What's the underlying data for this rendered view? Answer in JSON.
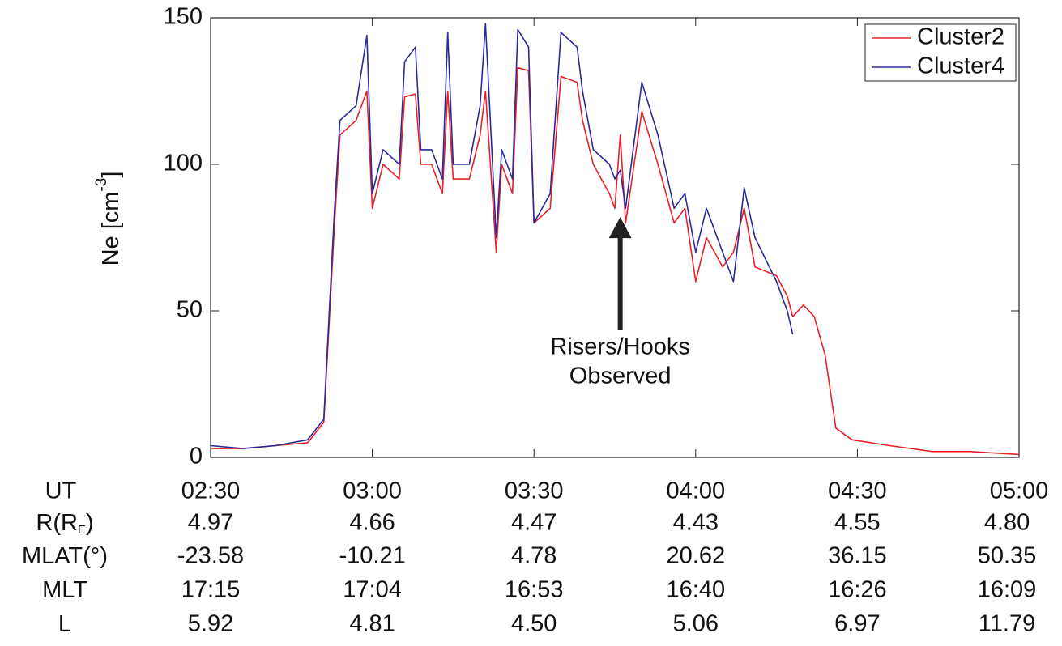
{
  "chart_data": {
    "type": "line",
    "ylabel": {
      "text": "Ne [cm",
      "superscript": "-3",
      "suffix": "]"
    },
    "x": [
      "02:30",
      "02:36",
      "02:42",
      "02:48",
      "02:51",
      "02:53",
      "02:54",
      "02:57",
      "02:59",
      "03:00",
      "03:02",
      "03:05",
      "03:06",
      "03:08",
      "03:09",
      "03:11",
      "03:13",
      "03:14",
      "03:15",
      "03:18",
      "03:20",
      "03:21",
      "03:23",
      "03:24",
      "03:26",
      "03:27",
      "03:29",
      "03:30",
      "03:33",
      "03:35",
      "03:38",
      "03:39",
      "03:41",
      "03:44",
      "03:45",
      "03:46",
      "03:47",
      "03:50",
      "03:53",
      "03:56",
      "03:58",
      "04:00",
      "04:02",
      "04:05",
      "04:07",
      "04:09",
      "04:11",
      "04:15",
      "04:17",
      "04:18",
      "04:20",
      "04:22",
      "04:24",
      "04:26",
      "04:29",
      "04:36",
      "04:44",
      "04:51",
      "05:00"
    ],
    "series": [
      {
        "name": "Cluster2",
        "color": "#e8202a",
        "values": [
          3,
          3,
          4,
          5,
          12,
          80,
          110,
          115,
          125,
          85,
          100,
          95,
          123,
          124,
          100,
          100,
          90,
          125,
          95,
          95,
          110,
          125,
          70,
          100,
          90,
          133,
          132,
          80,
          85,
          130,
          128,
          115,
          100,
          90,
          85,
          110,
          80,
          118,
          100,
          80,
          85,
          60,
          75,
          65,
          70,
          85,
          65,
          62,
          55,
          48,
          52,
          48,
          35,
          10,
          6,
          4,
          2,
          2,
          1
        ]
      },
      {
        "name": "Cluster4",
        "color": "#2a2a9a",
        "values": [
          4,
          3,
          4,
          6,
          13,
          85,
          115,
          120,
          144,
          90,
          105,
          100,
          135,
          140,
          105,
          105,
          95,
          145,
          100,
          100,
          120,
          148,
          75,
          105,
          95,
          146,
          140,
          80,
          90,
          145,
          140,
          125,
          105,
          100,
          95,
          98,
          85,
          128,
          110,
          85,
          90,
          70,
          85,
          70,
          60,
          92,
          75,
          60,
          50,
          42,
          null,
          null,
          null,
          null,
          null,
          null,
          null,
          null,
          null
        ]
      }
    ],
    "xlim": [
      "02:30",
      "05:00"
    ],
    "xticks": [
      "02:30",
      "03:00",
      "03:30",
      "04:00",
      "04:30",
      "05:00"
    ],
    "ylim": [
      0,
      150
    ],
    "yticks": [
      0,
      50,
      100,
      150
    ],
    "legend": "upper right",
    "annotation": {
      "lines": [
        "Risers/Hooks",
        "Observed"
      ],
      "x": "03:46",
      "y": 82
    },
    "table": {
      "header": "UT",
      "rows": [
        {
          "label": {
            "text": "R(R",
            "subscript": "E",
            "suffix": ")"
          },
          "values": [
            "4.97",
            "4.66",
            "4.47",
            "4.43",
            "4.55",
            "4.80"
          ]
        },
        {
          "label": {
            "text": "MLAT(°)"
          },
          "values": [
            "-23.58",
            "-10.21",
            "4.78",
            "20.62",
            "36.15",
            "50.35"
          ]
        },
        {
          "label": {
            "text": "MLT"
          },
          "values": [
            "17:15",
            "17:04",
            "16:53",
            "16:40",
            "16:26",
            "16:09"
          ]
        },
        {
          "label": {
            "text": "L"
          },
          "values": [
            "5.92",
            "4.81",
            "4.50",
            "5.06",
            "6.97",
            "11.79"
          ]
        }
      ]
    }
  }
}
